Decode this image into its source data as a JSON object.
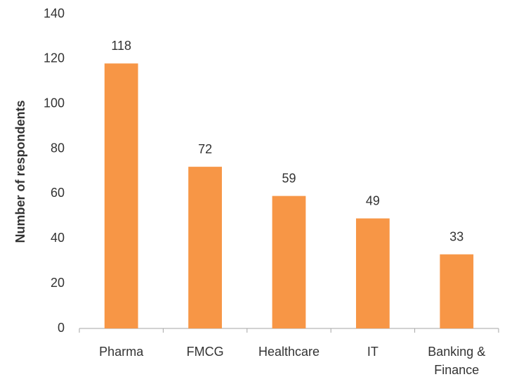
{
  "chart_data": {
    "type": "bar",
    "y_label": "Number of respondents",
    "categories": [
      "Pharma",
      "FMCG",
      "Healthcare",
      "IT",
      "Banking & Finance"
    ],
    "values": [
      118,
      72,
      59,
      49,
      33
    ],
    "color": "#f79646",
    "ylim": [
      0,
      140
    ],
    "yticks": [
      0,
      20,
      40,
      60,
      80,
      100,
      120,
      140
    ],
    "grid": false
  }
}
